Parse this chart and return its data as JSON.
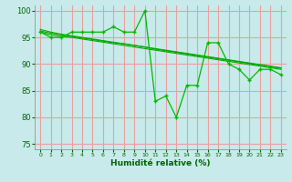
{
  "title": "",
  "xlabel": "Humidité relative (%)",
  "ylabel": "",
  "xlim": [
    -0.5,
    23.5
  ],
  "ylim": [
    74,
    101
  ],
  "yticks": [
    75,
    80,
    85,
    90,
    95,
    100
  ],
  "xticks": [
    0,
    1,
    2,
    3,
    4,
    5,
    6,
    7,
    8,
    9,
    10,
    11,
    12,
    13,
    14,
    15,
    16,
    17,
    18,
    19,
    20,
    21,
    22,
    23
  ],
  "bg_color": "#c8eaea",
  "grid_color": "#e8a0a0",
  "line_color": "#00aa00",
  "line_color2": "#00bb00",
  "series": {
    "volatile": [
      96,
      95,
      95,
      96,
      96,
      96,
      96,
      97,
      96,
      96,
      100,
      83,
      84,
      80,
      86,
      86,
      94,
      94,
      90,
      89,
      87,
      89,
      89,
      88
    ],
    "smooth1": [
      96,
      95.5,
      95.2,
      95.0,
      94.7,
      94.4,
      94.1,
      93.8,
      93.5,
      93.2,
      92.9,
      92.6,
      92.3,
      92.0,
      91.7,
      91.4,
      91.1,
      90.8,
      90.5,
      90.2,
      89.9,
      89.6,
      89.3,
      89.0
    ],
    "smooth2": [
      96.2,
      95.8,
      95.5,
      95.2,
      94.9,
      94.6,
      94.3,
      94.0,
      93.8,
      93.5,
      93.2,
      92.8,
      92.5,
      92.2,
      91.9,
      91.6,
      91.3,
      91.0,
      90.7,
      90.4,
      90.1,
      89.8,
      89.5,
      89.2
    ],
    "smooth3": [
      96.5,
      96.0,
      95.6,
      95.3,
      95.0,
      94.7,
      94.4,
      94.1,
      93.8,
      93.5,
      93.2,
      92.9,
      92.6,
      92.3,
      92.0,
      91.7,
      91.4,
      91.1,
      90.8,
      90.5,
      90.2,
      89.9,
      89.6,
      89.3
    ]
  }
}
